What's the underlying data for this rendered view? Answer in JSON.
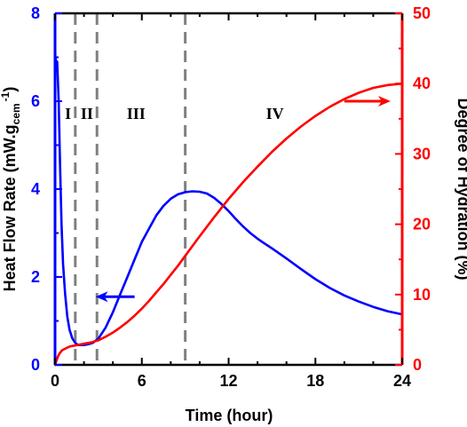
{
  "chart_data": {
    "type": "line",
    "xlabel": "Time (hour)",
    "ylabel_left": {
      "text_main": "Heat Flow Rate (mW.g",
      "text_sub": "cem",
      "text_sup": "-1",
      "text_end": ")"
    },
    "ylabel_right": "Degree of Hydration (%)",
    "xlim": [
      0,
      24
    ],
    "ylim_left": [
      0,
      8
    ],
    "ylim_right": [
      0,
      50
    ],
    "x_ticks": [
      0,
      6,
      12,
      18,
      24
    ],
    "x_tick_labels": [
      "0",
      "6",
      "12",
      "18",
      "24"
    ],
    "y_left_ticks": [
      0,
      2,
      4,
      6,
      8
    ],
    "y_left_tick_labels": [
      "0",
      "2",
      "4",
      "6",
      "8"
    ],
    "y_right_ticks": [
      0,
      10,
      20,
      30,
      40,
      50
    ],
    "y_right_tick_labels": [
      "0",
      "10",
      "20",
      "30",
      "40",
      "50"
    ],
    "colors": {
      "heat_flow": "#0000ff",
      "hydration": "#ff0000",
      "phase_lines": "#808080",
      "frame": "#000000"
    },
    "series": [
      {
        "axis": "left",
        "color": "#0000ff",
        "x": [
          0.0,
          0.02,
          0.08,
          0.15,
          0.25,
          0.35,
          0.45,
          0.55,
          0.7,
          0.85,
          1.0,
          1.2,
          1.4,
          1.6,
          1.8,
          2.0,
          2.3,
          2.6,
          3.0,
          3.5,
          4.0,
          4.5,
          5.0,
          5.5,
          6.0,
          6.5,
          7.0,
          7.5,
          8.0,
          8.5,
          9.0,
          9.5,
          10.0,
          10.5,
          11.0,
          11.5,
          12.0,
          12.5,
          13.0,
          13.5,
          14.0,
          14.5,
          15.0,
          16.0,
          17.0,
          18.0,
          19.0,
          20.0,
          21.0,
          22.0,
          23.0,
          24.0
        ],
        "y": [
          7.6,
          7.0,
          6.9,
          6.9,
          6.0,
          4.5,
          3.2,
          2.3,
          1.6,
          1.1,
          0.8,
          0.6,
          0.5,
          0.45,
          0.45,
          0.45,
          0.47,
          0.5,
          0.6,
          0.85,
          1.2,
          1.6,
          2.0,
          2.4,
          2.8,
          3.1,
          3.4,
          3.62,
          3.78,
          3.88,
          3.93,
          3.95,
          3.94,
          3.9,
          3.8,
          3.66,
          3.5,
          3.32,
          3.15,
          3.0,
          2.87,
          2.76,
          2.65,
          2.42,
          2.18,
          1.95,
          1.75,
          1.58,
          1.44,
          1.32,
          1.22,
          1.15
        ]
      },
      {
        "axis": "right",
        "color": "#ff0000",
        "x": [
          0.0,
          0.1,
          0.2,
          0.3,
          0.5,
          0.8,
          1.0,
          1.5,
          2.0,
          2.5,
          3.0,
          3.5,
          4.0,
          4.5,
          5.0,
          5.5,
          6.0,
          6.5,
          7.0,
          7.5,
          8.0,
          8.5,
          9.0,
          10.0,
          11.0,
          12.0,
          13.0,
          14.0,
          15.0,
          16.0,
          17.0,
          18.0,
          19.0,
          20.0,
          21.0,
          22.0,
          23.0,
          24.0
        ],
        "y": [
          0.0,
          0.6,
          1.2,
          1.6,
          2.1,
          2.4,
          2.6,
          2.8,
          3.0,
          3.2,
          3.5,
          4.0,
          4.6,
          5.3,
          6.1,
          7.0,
          8.0,
          9.1,
          10.3,
          11.5,
          12.8,
          14.1,
          15.5,
          18.3,
          21.0,
          23.6,
          26.0,
          28.2,
          30.3,
          32.2,
          33.9,
          35.4,
          36.7,
          37.8,
          38.7,
          39.4,
          39.8,
          40.0
        ]
      }
    ],
    "phase_lines_x": [
      1.4,
      2.9,
      9.0
    ],
    "phase_labels": [
      {
        "text": "I",
        "x": 0.9,
        "y_left": 5.6
      },
      {
        "text": "II",
        "x": 2.2,
        "y_left": 5.6
      },
      {
        "text": "III",
        "x": 5.6,
        "y_left": 5.6
      },
      {
        "text": "IV",
        "x": 15.2,
        "y_left": 5.6
      }
    ],
    "arrows": [
      {
        "name": "heat-flow-axis-arrow",
        "color": "#0000ff",
        "x_from": 5.5,
        "x_to": 2.8,
        "y_left": 1.55
      },
      {
        "name": "hydration-axis-arrow",
        "color": "#ff0000",
        "x_from": 20.0,
        "x_to": 23.2,
        "y_left": 6.0
      }
    ]
  }
}
